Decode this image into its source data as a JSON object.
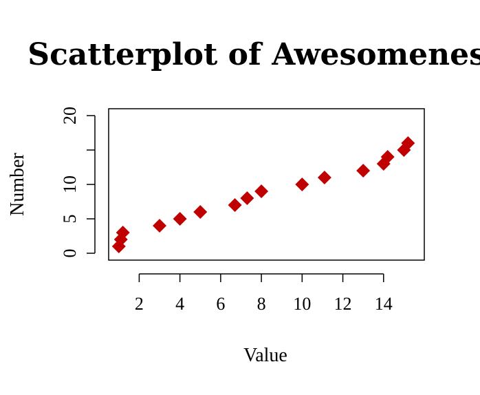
{
  "chart_data": {
    "type": "scatter",
    "title": "Scatterplot of Awesomeness",
    "xlabel": "Value",
    "ylabel": "Number",
    "xlim": [
      0.5,
      16
    ],
    "ylim": [
      -1,
      21
    ],
    "x_ticks": [
      2,
      4,
      6,
      8,
      10,
      12,
      14
    ],
    "x_tick_labels": [
      "2",
      "4",
      "6",
      "8",
      "10",
      "12",
      "14"
    ],
    "y_ticks": [
      0,
      5,
      10,
      15,
      20
    ],
    "y_tick_labels": [
      "0",
      "5",
      "10",
      "",
      "20"
    ],
    "marker": "diamond",
    "marker_color": "#c00000",
    "grid": false,
    "series": [
      {
        "x": [
          1.0,
          1.1,
          1.2,
          3.0,
          4.0,
          5.0,
          6.7,
          7.3,
          8.0,
          10.0,
          11.1,
          13.0,
          14.0,
          14.2,
          15.0,
          15.2
        ],
        "y": [
          1,
          2,
          3,
          4,
          5,
          6,
          7,
          8,
          9,
          10,
          11,
          12,
          13,
          14,
          15,
          16
        ]
      }
    ]
  }
}
